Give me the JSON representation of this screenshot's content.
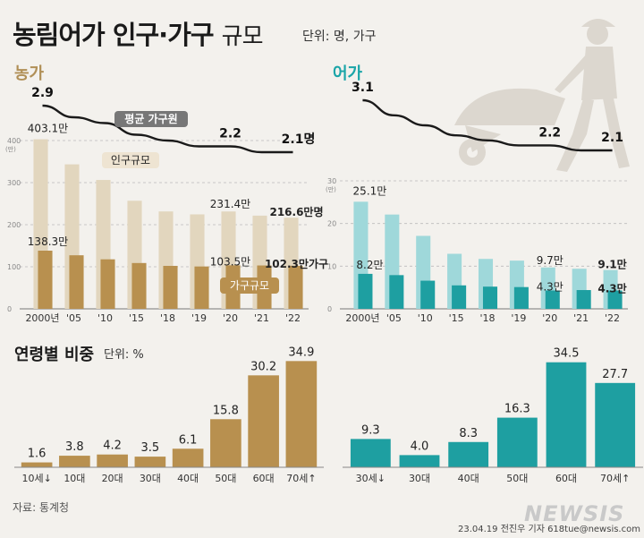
{
  "header": {
    "title_main": "농림어가 인구·가구",
    "title_sub": "규모",
    "unit": "단위: 명, 가구"
  },
  "sections": {
    "farm": "농가",
    "fish": "어가",
    "age": "연령별 비중",
    "age_unit": "단위: %"
  },
  "footer": {
    "source": "자료: 통계청",
    "credit": "23.04.19 전진우 기자 618tue@newsis.com",
    "logo": "NEWSIS"
  },
  "colors": {
    "farm_light": "#e2d6be",
    "farm_dark": "#b8904f",
    "fish_light": "#9fd8da",
    "fish_dark": "#1e9fa1",
    "line": "#1a1a1a"
  },
  "chart_data": [
    {
      "id": "farm",
      "type": "bar",
      "title": "농가",
      "categories": [
        "2000년",
        "'05",
        "'10",
        "'15",
        "'18",
        "'19",
        "'20",
        "'21",
        "'22"
      ],
      "series": [
        {
          "name": "인구규모",
          "unit": "만명",
          "values": [
            403.1,
            343.4,
            306.3,
            256.9,
            231.5,
            224.5,
            231.4,
            221.5,
            216.6
          ]
        },
        {
          "name": "가구규모",
          "unit": "만가구",
          "values": [
            138.3,
            127.3,
            117.7,
            108.9,
            102.1,
            100.7,
            103.5,
            103.1,
            102.3
          ]
        }
      ],
      "line": {
        "name": "평균 가구원",
        "values": [
          2.9,
          2.7,
          2.6,
          2.4,
          2.3,
          2.2,
          2.2,
          2.1,
          2.1
        ]
      },
      "ylim": [
        0,
        400
      ],
      "yticks": [
        0,
        100,
        200,
        300,
        400
      ],
      "yunit": "(만)",
      "legend": {
        "population": "인구규모",
        "household": "가구규모",
        "avg": "평균 가구원"
      },
      "labels": {
        "pop_2000": "403.1만",
        "hh_2000": "138.3만",
        "line_2000": "2.9",
        "pop_20": "231.4만",
        "hh_20": "103.5만",
        "line_20": "2.2",
        "pop_22": "216.6만명",
        "hh_22": "102.3만가구",
        "line_22": "2.1명"
      }
    },
    {
      "id": "fish",
      "type": "bar",
      "title": "어가",
      "categories": [
        "2000년",
        "'05",
        "'10",
        "'15",
        "'18",
        "'19",
        "'20",
        "'21",
        "'22"
      ],
      "series": [
        {
          "name": "인구규모",
          "unit": "만명",
          "values": [
            25.1,
            22.1,
            17.1,
            12.9,
            11.7,
            11.3,
            9.7,
            9.4,
            9.1
          ]
        },
        {
          "name": "가구규모",
          "unit": "만가구",
          "values": [
            8.2,
            7.9,
            6.6,
            5.5,
            5.2,
            5.1,
            4.3,
            4.4,
            4.3
          ]
        }
      ],
      "line": {
        "name": "평균 가구원",
        "values": [
          3.1,
          2.8,
          2.6,
          2.4,
          2.3,
          2.2,
          2.2,
          2.1,
          2.1
        ]
      },
      "ylim": [
        0,
        30
      ],
      "yticks": [
        0,
        10,
        20,
        30
      ],
      "yunit": "(만)",
      "labels": {
        "pop_2000": "25.1만",
        "hh_2000": "8.2만",
        "line_2000": "3.1",
        "pop_20": "9.7만",
        "hh_20": "4.3만",
        "line_20": "2.2",
        "pop_22": "9.1만",
        "hh_22": "4.3만",
        "line_22": "2.1"
      }
    },
    {
      "id": "farm_age",
      "type": "bar",
      "title": "연령별 비중 (농가)",
      "categories": [
        "10세↓",
        "10대",
        "20대",
        "30대",
        "40대",
        "50대",
        "60대",
        "70세↑"
      ],
      "values": [
        1.6,
        3.8,
        4.2,
        3.5,
        6.1,
        15.8,
        30.2,
        34.9
      ],
      "value_labels": [
        "1.6",
        "3.8",
        "4.2",
        "3.5",
        "6.1",
        "15.8",
        "30.2",
        "34.9"
      ],
      "ylim": [
        0,
        35
      ]
    },
    {
      "id": "fish_age",
      "type": "bar",
      "title": "연령별 비중 (어가)",
      "categories": [
        "30세↓",
        "30대",
        "40대",
        "50대",
        "60대",
        "70세↑"
      ],
      "values": [
        9.3,
        4.0,
        8.3,
        16.3,
        34.5,
        27.7
      ],
      "value_labels": [
        "9.3",
        "4.0",
        "8.3",
        "16.3",
        "34.5",
        "27.7"
      ],
      "ylim": [
        0,
        35
      ]
    }
  ]
}
